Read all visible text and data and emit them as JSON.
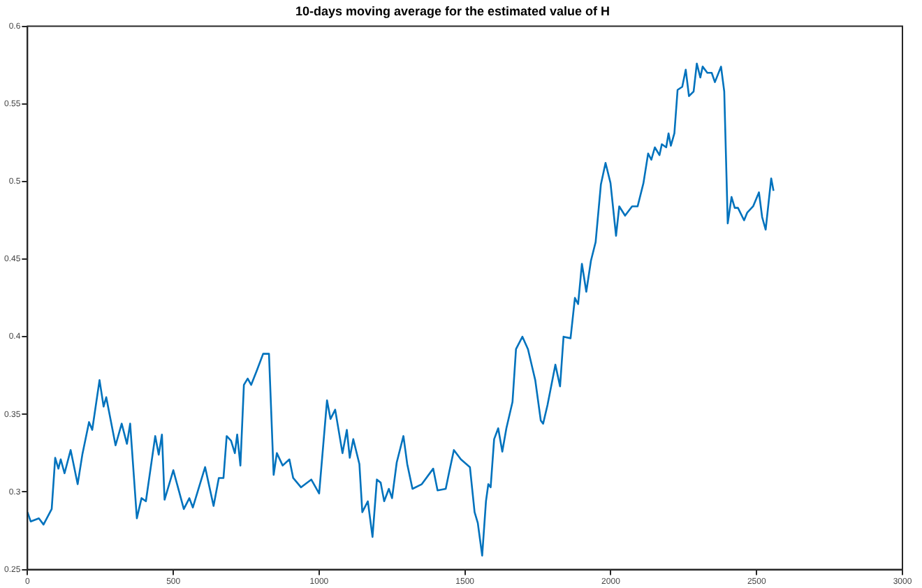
{
  "chart_data": {
    "type": "line",
    "title": "10-days moving average for the estimated value of H",
    "x": [
      0,
      11,
      39,
      55,
      83,
      95,
      106,
      114,
      127,
      148,
      172,
      188,
      211,
      222,
      247,
      261,
      270,
      302,
      323,
      341,
      352,
      375,
      391,
      406,
      438,
      450,
      461,
      470,
      500,
      536,
      555,
      567,
      609,
      638,
      656,
      672,
      683,
      698,
      711,
      719,
      730,
      742,
      755,
      767,
      786,
      808,
      828,
      844,
      855,
      875,
      898,
      911,
      938,
      973,
      1000,
      1027,
      1039,
      1055,
      1080,
      1095,
      1105,
      1117,
      1138,
      1148,
      1167,
      1183,
      1198,
      1211,
      1223,
      1239,
      1250,
      1266,
      1289,
      1302,
      1320,
      1352,
      1391,
      1406,
      1434,
      1445,
      1462,
      1486,
      1517,
      1533,
      1544,
      1559,
      1572,
      1580,
      1588,
      1600,
      1614,
      1628,
      1642,
      1663,
      1675,
      1697,
      1716,
      1741,
      1760,
      1768,
      1783,
      1810,
      1826,
      1838,
      1862,
      1877,
      1888,
      1901,
      1916,
      1932,
      1948,
      1966,
      1982,
      1999,
      2018,
      2029,
      2049,
      2073,
      2092,
      2112,
      2128,
      2139,
      2151,
      2167,
      2175,
      2190,
      2198,
      2206,
      2218,
      2229,
      2245,
      2257,
      2268,
      2284,
      2295,
      2307,
      2315,
      2331,
      2346,
      2357,
      2378,
      2389,
      2401,
      2414,
      2425,
      2436,
      2457,
      2468,
      2488,
      2508,
      2519,
      2531,
      2550,
      2558
    ],
    "series": [
      {
        "color": "#0072bd",
        "values": [
          0.287,
          0.281,
          0.283,
          0.279,
          0.289,
          0.322,
          0.315,
          0.321,
          0.312,
          0.327,
          0.305,
          0.324,
          0.345,
          0.34,
          0.372,
          0.355,
          0.361,
          0.33,
          0.344,
          0.331,
          0.344,
          0.283,
          0.296,
          0.294,
          0.336,
          0.324,
          0.337,
          0.295,
          0.314,
          0.289,
          0.296,
          0.29,
          0.316,
          0.291,
          0.309,
          0.309,
          0.336,
          0.333,
          0.325,
          0.337,
          0.317,
          0.369,
          0.373,
          0.369,
          0.378,
          0.389,
          0.389,
          0.311,
          0.325,
          0.317,
          0.321,
          0.309,
          0.303,
          0.308,
          0.299,
          0.359,
          0.347,
          0.353,
          0.325,
          0.34,
          0.322,
          0.334,
          0.318,
          0.287,
          0.294,
          0.271,
          0.308,
          0.306,
          0.294,
          0.302,
          0.296,
          0.319,
          0.336,
          0.318,
          0.302,
          0.305,
          0.315,
          0.301,
          0.302,
          0.312,
          0.327,
          0.321,
          0.316,
          0.287,
          0.28,
          0.259,
          0.294,
          0.305,
          0.303,
          0.334,
          0.341,
          0.326,
          0.341,
          0.358,
          0.392,
          0.4,
          0.392,
          0.372,
          0.346,
          0.344,
          0.356,
          0.382,
          0.368,
          0.4,
          0.399,
          0.425,
          0.421,
          0.447,
          0.429,
          0.449,
          0.461,
          0.498,
          0.512,
          0.499,
          0.465,
          0.484,
          0.478,
          0.484,
          0.484,
          0.499,
          0.518,
          0.514,
          0.522,
          0.517,
          0.524,
          0.522,
          0.531,
          0.523,
          0.531,
          0.559,
          0.561,
          0.572,
          0.555,
          0.558,
          0.576,
          0.567,
          0.574,
          0.57,
          0.57,
          0.564,
          0.574,
          0.558,
          0.473,
          0.49,
          0.483,
          0.483,
          0.475,
          0.48,
          0.484,
          0.493,
          0.477,
          0.469,
          0.502,
          0.494
        ]
      }
    ],
    "xlim": [
      0,
      3000
    ],
    "xticks": [
      0,
      500,
      1000,
      1500,
      2000,
      2500,
      3000
    ],
    "ylim": [
      0.25,
      0.6
    ],
    "yticks": [
      0.25,
      0.3,
      0.35,
      0.4,
      0.45,
      0.5,
      0.55,
      0.6
    ],
    "grid": false,
    "legend": false,
    "marker": "none",
    "line_style": "solid"
  }
}
